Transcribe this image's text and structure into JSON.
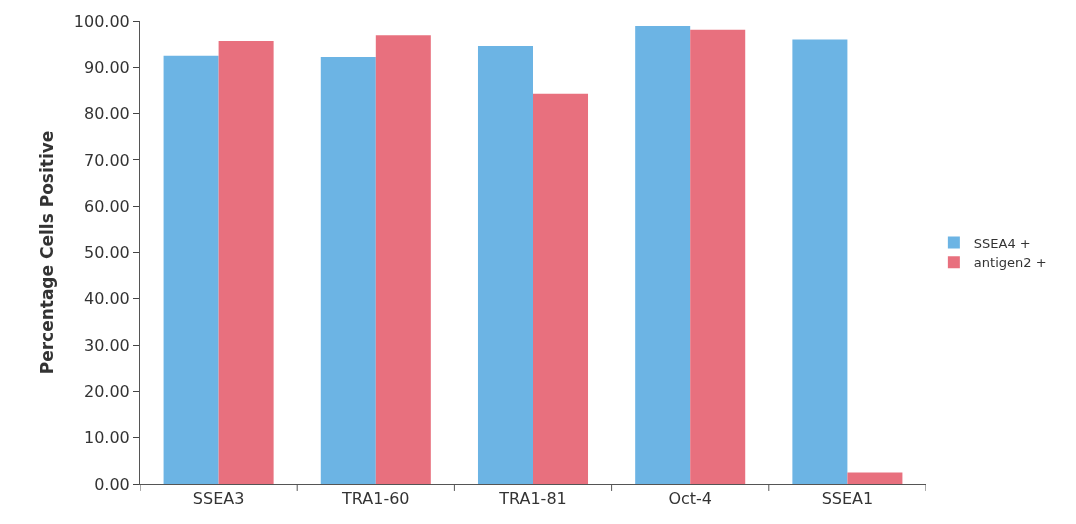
{
  "chart_data": {
    "type": "bar",
    "ylabel": "Percentage Cells Positive",
    "categories": [
      "SSEA3",
      "TRA1-60",
      "TRA1-81",
      "Oct-4",
      "SSEA1"
    ],
    "series": [
      {
        "name": "SSEA4 +",
        "color": "#6cb4e4",
        "values": [
          92.5,
          92.2,
          94.6,
          98.9,
          96.0
        ]
      },
      {
        "name": "antigen2 +",
        "color": "#e8707e",
        "values": [
          95.7,
          96.9,
          84.3,
          98.1,
          2.5
        ]
      }
    ],
    "ylim": [
      0,
      100
    ],
    "yticks": [
      {
        "value": 0,
        "label": "0.00"
      },
      {
        "value": 10,
        "label": "10.00"
      },
      {
        "value": 20,
        "label": "20.00"
      },
      {
        "value": 30,
        "label": "30.00"
      },
      {
        "value": 40,
        "label": "40.00"
      },
      {
        "value": 50,
        "label": "50.00"
      },
      {
        "value": 60,
        "label": "60.00"
      },
      {
        "value": 70,
        "label": "70.00"
      },
      {
        "value": 80,
        "label": "80.00"
      },
      {
        "value": 90,
        "label": "90.00"
      },
      {
        "value": 100,
        "label": "100.00"
      }
    ],
    "legend": "right"
  }
}
